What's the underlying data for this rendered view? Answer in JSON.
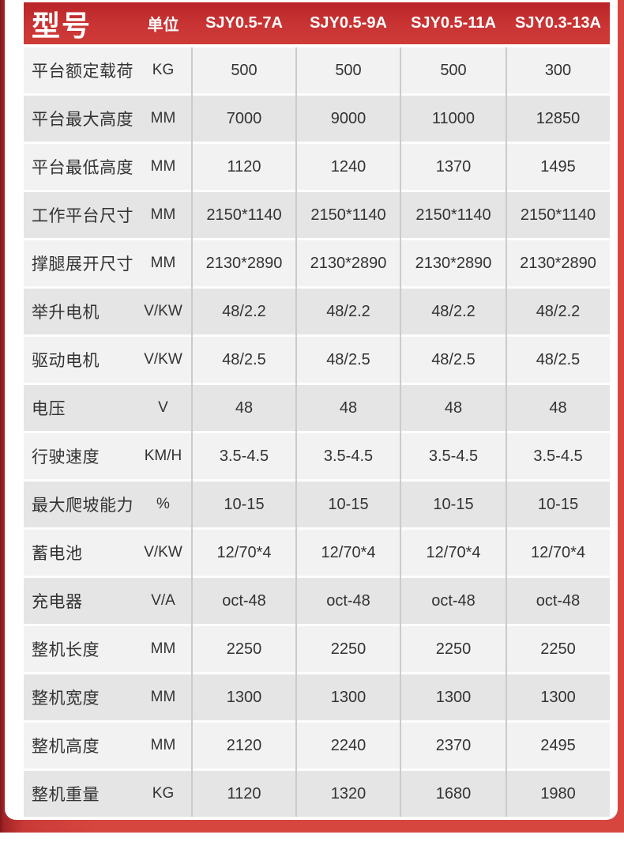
{
  "table": {
    "header": {
      "model_label": "型号",
      "unit_label": "单位",
      "models": [
        "SJY0.5-7A",
        "SJY0.5-9A",
        "SJY0.5-11A",
        "SJY0.3-13A"
      ]
    },
    "rows": [
      {
        "label": "平台额定载荷",
        "unit": "KG",
        "values": [
          "500",
          "500",
          "500",
          "300"
        ]
      },
      {
        "label": "平台最大高度",
        "unit": "MM",
        "values": [
          "7000",
          "9000",
          "11000",
          "12850"
        ]
      },
      {
        "label": "平台最低高度",
        "unit": "MM",
        "values": [
          "1120",
          "1240",
          "1370",
          "1495"
        ]
      },
      {
        "label": "工作平台尺寸",
        "unit": "MM",
        "values": [
          "2150*1140",
          "2150*1140",
          "2150*1140",
          "2150*1140"
        ]
      },
      {
        "label": "撑腿展开尺寸",
        "unit": "MM",
        "values": [
          "2130*2890",
          "2130*2890",
          "2130*2890",
          "2130*2890"
        ]
      },
      {
        "label": "举升电机",
        "unit": "V/KW",
        "values": [
          "48/2.2",
          "48/2.2",
          "48/2.2",
          "48/2.2"
        ]
      },
      {
        "label": "驱动电机",
        "unit": "V/KW",
        "values": [
          "48/2.5",
          "48/2.5",
          "48/2.5",
          "48/2.5"
        ]
      },
      {
        "label": "电压",
        "unit": "V",
        "values": [
          "48",
          "48",
          "48",
          "48"
        ]
      },
      {
        "label": "行驶速度",
        "unit": "KM/H",
        "values": [
          "3.5-4.5",
          "3.5-4.5",
          "3.5-4.5",
          "3.5-4.5"
        ]
      },
      {
        "label": "最大爬坡能力",
        "unit": "%",
        "values": [
          "10-15",
          "10-15",
          "10-15",
          "10-15"
        ]
      },
      {
        "label": "蓄电池",
        "unit": "V/KW",
        "values": [
          "12/70*4",
          "12/70*4",
          "12/70*4",
          "12/70*4"
        ]
      },
      {
        "label": "充电器",
        "unit": "V/A",
        "values": [
          "oct-48",
          "oct-48",
          "oct-48",
          "oct-48"
        ]
      },
      {
        "label": "整机长度",
        "unit": "MM",
        "values": [
          "2250",
          "2250",
          "2250",
          "2250"
        ]
      },
      {
        "label": "整机宽度",
        "unit": "MM",
        "values": [
          "1300",
          "1300",
          "1300",
          "1300"
        ]
      },
      {
        "label": "整机高度",
        "unit": "MM",
        "values": [
          "2120",
          "2240",
          "2370",
          "2495"
        ]
      },
      {
        "label": "整机重量",
        "unit": "KG",
        "values": [
          "1120",
          "1320",
          "1680",
          "1980"
        ]
      }
    ]
  },
  "colors": {
    "header_red": "#c42f31",
    "frame_red": "#d7453f",
    "frame_dark_red": "#7f181b",
    "row_light": "#f2f2f2",
    "row_dark": "#e5e5e5",
    "body_text": "#333333",
    "header_text": "#ffffff"
  }
}
